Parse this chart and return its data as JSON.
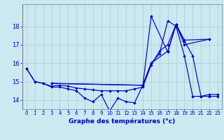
{
  "xlabel": "Graphe des températures (°c)",
  "background_color": "#cce8f0",
  "grid_color": "#aaccd8",
  "line_color": "#0000bb",
  "xlim": [
    -0.5,
    23.5
  ],
  "ylim": [
    13.5,
    19.2
  ],
  "xticks": [
    0,
    1,
    2,
    3,
    4,
    5,
    6,
    7,
    8,
    9,
    10,
    11,
    12,
    13,
    14,
    15,
    16,
    17,
    18,
    19,
    20,
    21,
    22,
    23
  ],
  "yticks": [
    14,
    15,
    16,
    17,
    18
  ],
  "series": {
    "line1_x": [
      0,
      1,
      2,
      3,
      4,
      5,
      6,
      7,
      8,
      9,
      10,
      11,
      12,
      13,
      14,
      15,
      16,
      17,
      18,
      19,
      20,
      21,
      22,
      23
    ],
    "line1_y": [
      15.7,
      15.0,
      14.9,
      14.7,
      14.7,
      14.6,
      14.5,
      14.1,
      13.9,
      14.3,
      13.4,
      14.1,
      13.9,
      13.85,
      14.8,
      16.0,
      16.5,
      18.3,
      18.0,
      16.4,
      14.2,
      14.2,
      14.3,
      14.3
    ],
    "line2_x": [
      0,
      1,
      2,
      3,
      4,
      5,
      6,
      7,
      8,
      9,
      10,
      11,
      12,
      13,
      14,
      15,
      16,
      17,
      18,
      19,
      20,
      21,
      22,
      23
    ],
    "line2_y": [
      15.7,
      15.0,
      14.9,
      14.75,
      14.8,
      14.75,
      14.65,
      14.6,
      14.55,
      14.5,
      14.5,
      14.5,
      14.5,
      14.6,
      14.7,
      15.9,
      16.65,
      17.0,
      18.1,
      17.2,
      16.4,
      14.2,
      14.2,
      14.2
    ],
    "line3_x": [
      3,
      14,
      15,
      17,
      18,
      19,
      22
    ],
    "line3_y": [
      14.9,
      14.8,
      18.55,
      16.6,
      18.1,
      17.25,
      17.3
    ],
    "line4_x": [
      3,
      14,
      15,
      17,
      18,
      19,
      22
    ],
    "line4_y": [
      14.9,
      14.8,
      16.0,
      16.65,
      18.1,
      17.0,
      17.3
    ]
  }
}
